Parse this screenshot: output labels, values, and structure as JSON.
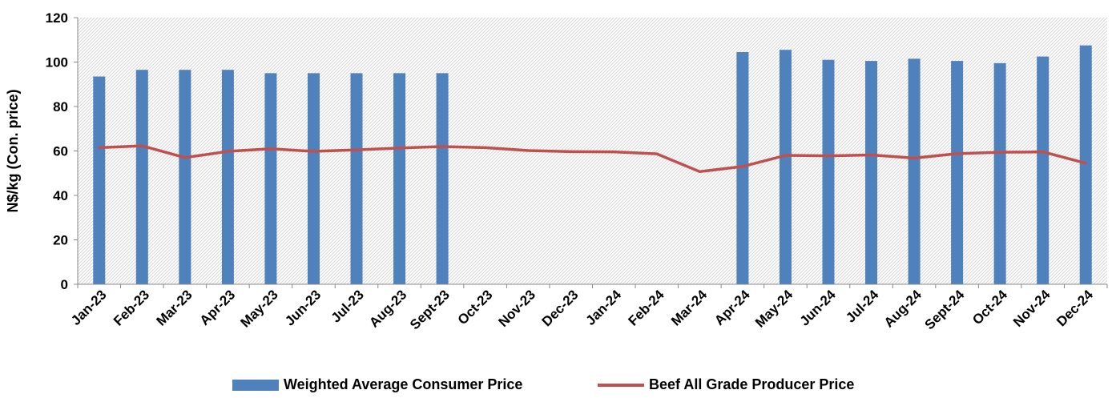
{
  "chart_data": {
    "type": "bar",
    "title": "",
    "xlabel": "",
    "ylabel": "N$/kg (Con. price)",
    "ylim": [
      0,
      120
    ],
    "yticks": [
      "0",
      "20",
      "40",
      "60",
      "80",
      "100",
      "120"
    ],
    "grid": "hatched plot area",
    "legend_position": "bottom",
    "categories": [
      "Jan-23",
      "Feb-23",
      "Mar-23",
      "Apr-23",
      "May-23",
      "Jun-23",
      "Jul-23",
      "Aug-23",
      "Sept-23",
      "Oct-23",
      "Nov-23",
      "Dec-23",
      "Jan-24",
      "Feb-24",
      "Mar-24",
      "Apr-24",
      "May-24",
      "Jun-24",
      "Jul-24",
      "Aug-24",
      "Sept-24",
      "Oct-24",
      "Nov-24",
      "Dec-24"
    ],
    "series": [
      {
        "name": "Weighted Average Consumer Price",
        "type": "bar",
        "color": "#4f81bd",
        "values": [
          93.5,
          96.5,
          96.5,
          96.5,
          95,
          95,
          95,
          95,
          95,
          null,
          null,
          null,
          null,
          null,
          null,
          104.5,
          105.5,
          101,
          100.5,
          101.5,
          100.5,
          99.5,
          102.5,
          107.5
        ]
      },
      {
        "name": "Beef All Grade Producer Price",
        "type": "line",
        "color": "#c0504d",
        "values": [
          61.5,
          62.3,
          57,
          59.8,
          61,
          59.8,
          60.5,
          61.3,
          62,
          61.5,
          60.2,
          59.7,
          59.6,
          58.7,
          50.7,
          53,
          58,
          57.8,
          58.2,
          56.8,
          58.8,
          59.4,
          59.6,
          54.5
        ]
      }
    ]
  }
}
